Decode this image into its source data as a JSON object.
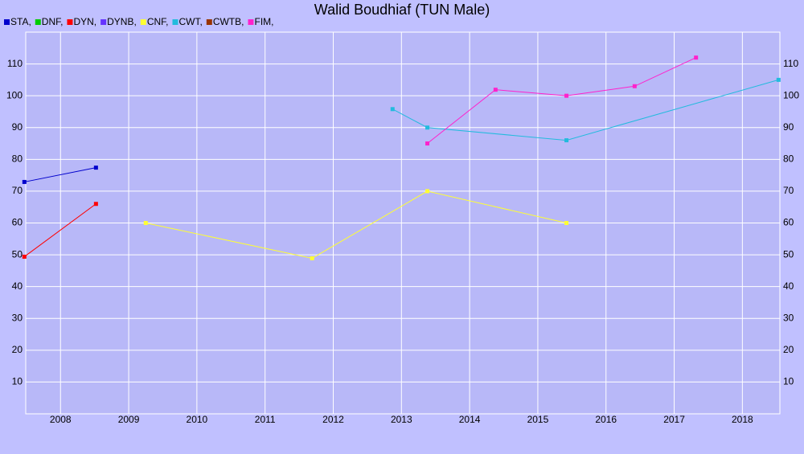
{
  "chart_data": {
    "type": "line",
    "title": "Walid Boudhiaf (TUN Male)",
    "xlim": [
      2007.49,
      2018.55
    ],
    "xticks": [
      2008,
      2009,
      2010,
      2011,
      2012,
      2013,
      2014,
      2015,
      2016,
      2017,
      2018
    ],
    "ylim": [
      0,
      120
    ],
    "yticks": [
      10,
      20,
      30,
      40,
      50,
      60,
      70,
      80,
      90,
      100,
      110
    ],
    "grid": true,
    "series": [
      {
        "name": "STA,",
        "color": "#0000cc",
        "x": [
          2007.47,
          2008.52
        ],
        "values": [
          72.9,
          77.4
        ]
      },
      {
        "name": "DNF,",
        "color": "#00cc00",
        "x": [],
        "values": []
      },
      {
        "name": "DYN,",
        "color": "#ff0000",
        "x": [
          2007.47,
          2008.52
        ],
        "values": [
          49.4,
          66
        ]
      },
      {
        "name": "DYNB,",
        "color": "#6633ff",
        "x": [],
        "values": []
      },
      {
        "name": "CNF,",
        "color": "#ffff33",
        "x": [
          2009.25,
          2011.69,
          2013.38,
          2015.42
        ],
        "values": [
          60,
          48.9,
          70,
          60
        ]
      },
      {
        "name": "CWT,",
        "color": "#22bbdd",
        "x": [
          2012.87,
          2013.38,
          2015.42,
          2018.53
        ],
        "values": [
          95.8,
          90,
          86,
          105
        ]
      },
      {
        "name": "CWTB,",
        "color": "#993300",
        "x": [],
        "values": []
      },
      {
        "name": "FIM,",
        "color": "#ff22cc",
        "x": [
          2013.38,
          2014.38,
          2015.42,
          2016.42,
          2017.32
        ],
        "values": [
          85,
          101.9,
          100,
          103,
          112
        ]
      }
    ]
  }
}
